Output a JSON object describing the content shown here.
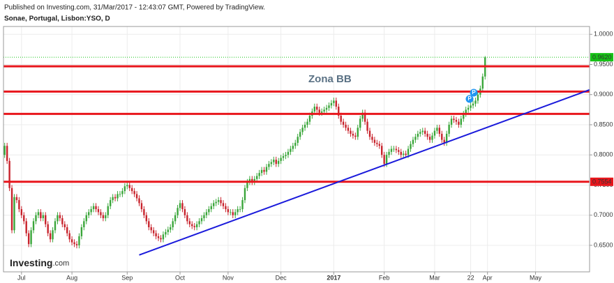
{
  "header": {
    "published": "Published on Investing.com, 31/Mar/2017 - 12:43:07 GMT, Powered by TradingView.",
    "symbol": "Sonae, Portugal, Lisbon:YSO, D"
  },
  "logo": {
    "name": "Investing",
    "suffix": ".com"
  },
  "chart_data": {
    "type": "candlestick",
    "annotation": "Zona BB",
    "event_markers": [
      "P",
      "P"
    ],
    "up_color": "#3aa63a",
    "down_color": "#c8232c",
    "hline_color": "#e8161c",
    "trend_color": "#1a1adb",
    "last_color": "#16c316",
    "grid": true,
    "xlim": [
      -0.5,
      243.5
    ],
    "ylim": [
      0.606,
      1.013
    ],
    "xticks": [
      {
        "value": 7,
        "label": "Jul"
      },
      {
        "value": 28,
        "label": "Aug"
      },
      {
        "value": 51,
        "label": "Sep"
      },
      {
        "value": 73,
        "label": "Oct"
      },
      {
        "value": 93,
        "label": "Nov"
      },
      {
        "value": 115,
        "label": "Dec"
      },
      {
        "value": 137,
        "label": "2017"
      },
      {
        "value": 158,
        "label": "Feb"
      },
      {
        "value": 179,
        "label": "Mar"
      },
      {
        "value": 194,
        "label": "22"
      },
      {
        "value": 201,
        "label": "Apr"
      },
      {
        "value": 221,
        "label": "May"
      }
    ],
    "yticks": [
      {
        "value": 0.65,
        "label": "0.6500"
      },
      {
        "value": 0.7,
        "label": "0.7000"
      },
      {
        "value": 0.75,
        "label": "0.7500"
      },
      {
        "value": 0.8,
        "label": "0.8000"
      },
      {
        "value": 0.85,
        "label": "0.8500"
      },
      {
        "value": 0.9,
        "label": "0.9000"
      },
      {
        "value": 0.95,
        "label": "0.9500"
      },
      {
        "value": 1,
        "label": "1.0000"
      }
    ],
    "hlines": [
      0.947,
      0.905,
      0.868,
      {
        "value": 0.7554,
        "label": "0.7554"
      }
    ],
    "last_price": {
      "value": 0.962,
      "label": "0.9620"
    },
    "trendline": {
      "x": [
        56,
        243.5
      ],
      "y": [
        0.634,
        0.908
      ]
    },
    "open": [
      0.8,
      0.815,
      0.79,
      0.745,
      0.675,
      0.73,
      0.725,
      0.71,
      0.7,
      0.69,
      0.67,
      0.652,
      0.675,
      0.69,
      0.7,
      0.705,
      0.695,
      0.7,
      0.685,
      0.67,
      0.66,
      0.675,
      0.69,
      0.7,
      0.695,
      0.685,
      0.68,
      0.67,
      0.66,
      0.655,
      0.652,
      0.65,
      0.665,
      0.68,
      0.69,
      0.7,
      0.705,
      0.71,
      0.715,
      0.71,
      0.705,
      0.7,
      0.695,
      0.7,
      0.715,
      0.725,
      0.73,
      0.728,
      0.735,
      0.735,
      0.74,
      0.748,
      0.75,
      0.745,
      0.74,
      0.735,
      0.728,
      0.72,
      0.71,
      0.7,
      0.69,
      0.68,
      0.675,
      0.67,
      0.665,
      0.662,
      0.66,
      0.668,
      0.672,
      0.676,
      0.68,
      0.69,
      0.7,
      0.712,
      0.72,
      0.71,
      0.7,
      0.69,
      0.685,
      0.682,
      0.68,
      0.685,
      0.69,
      0.695,
      0.7,
      0.705,
      0.71,
      0.715,
      0.72,
      0.722,
      0.725,
      0.72,
      0.715,
      0.71,
      0.705,
      0.705,
      0.7,
      0.705,
      0.71,
      0.71,
      0.725,
      0.745,
      0.755,
      0.76,
      0.755,
      0.76,
      0.765,
      0.77,
      0.775,
      0.772,
      0.78,
      0.785,
      0.788,
      0.792,
      0.785,
      0.79,
      0.795,
      0.798,
      0.8,
      0.805,
      0.81,
      0.815,
      0.82,
      0.83,
      0.838,
      0.845,
      0.85,
      0.855,
      0.865,
      0.872,
      0.88,
      0.875,
      0.87,
      0.872,
      0.875,
      0.878,
      0.882,
      0.886,
      0.89,
      0.88,
      0.865,
      0.855,
      0.85,
      0.845,
      0.84,
      0.835,
      0.832,
      0.83,
      0.845,
      0.86,
      0.87,
      0.855,
      0.84,
      0.83,
      0.825,
      0.82,
      0.818,
      0.815,
      0.8,
      0.785,
      0.8,
      0.805,
      0.81,
      0.81,
      0.808,
      0.805,
      0.8,
      0.802,
      0.8,
      0.81,
      0.818,
      0.825,
      0.83,
      0.835,
      0.838,
      0.84,
      0.835,
      0.83,
      0.825,
      0.832,
      0.84,
      0.845,
      0.835,
      0.825,
      0.82,
      0.835,
      0.85,
      0.86,
      0.858,
      0.855,
      0.85,
      0.86,
      0.868,
      0.875,
      0.878,
      0.882,
      0.885,
      0.89,
      0.9,
      0.91,
      0.93
    ],
    "high": [
      0.82,
      0.82,
      0.795,
      0.75,
      0.735,
      0.735,
      0.73,
      0.715,
      0.705,
      0.695,
      0.675,
      0.68,
      0.695,
      0.705,
      0.71,
      0.71,
      0.705,
      0.705,
      0.69,
      0.675,
      0.68,
      0.695,
      0.705,
      0.705,
      0.7,
      0.69,
      0.685,
      0.675,
      0.665,
      0.66,
      0.657,
      0.67,
      0.685,
      0.695,
      0.705,
      0.71,
      0.715,
      0.72,
      0.72,
      0.715,
      0.71,
      0.705,
      0.705,
      0.72,
      0.73,
      0.735,
      0.735,
      0.74,
      0.74,
      0.745,
      0.753,
      0.755,
      0.755,
      0.75,
      0.745,
      0.74,
      0.733,
      0.725,
      0.715,
      0.705,
      0.695,
      0.685,
      0.68,
      0.675,
      0.67,
      0.667,
      0.673,
      0.677,
      0.681,
      0.685,
      0.695,
      0.705,
      0.717,
      0.725,
      0.725,
      0.715,
      0.705,
      0.695,
      0.69,
      0.687,
      0.69,
      0.695,
      0.7,
      0.705,
      0.71,
      0.715,
      0.72,
      0.725,
      0.727,
      0.73,
      0.73,
      0.725,
      0.72,
      0.715,
      0.71,
      0.71,
      0.71,
      0.715,
      0.715,
      0.73,
      0.75,
      0.76,
      0.765,
      0.765,
      0.765,
      0.77,
      0.775,
      0.78,
      0.78,
      0.785,
      0.79,
      0.793,
      0.797,
      0.797,
      0.795,
      0.8,
      0.803,
      0.805,
      0.81,
      0.815,
      0.82,
      0.825,
      0.835,
      0.843,
      0.85,
      0.855,
      0.86,
      0.87,
      0.877,
      0.885,
      0.885,
      0.88,
      0.877,
      0.88,
      0.883,
      0.887,
      0.891,
      0.895,
      0.895,
      0.885,
      0.87,
      0.86,
      0.855,
      0.85,
      0.845,
      0.84,
      0.837,
      0.85,
      0.865,
      0.875,
      0.875,
      0.86,
      0.845,
      0.835,
      0.83,
      0.825,
      0.823,
      0.82,
      0.805,
      0.805,
      0.81,
      0.815,
      0.815,
      0.815,
      0.813,
      0.81,
      0.807,
      0.807,
      0.815,
      0.823,
      0.83,
      0.835,
      0.84,
      0.843,
      0.845,
      0.845,
      0.84,
      0.835,
      0.837,
      0.845,
      0.85,
      0.85,
      0.84,
      0.83,
      0.84,
      0.855,
      0.865,
      0.865,
      0.863,
      0.86,
      0.865,
      0.873,
      0.88,
      0.883,
      0.887,
      0.89,
      0.895,
      0.905,
      0.915,
      0.935,
      0.964
    ],
    "low": [
      0.795,
      0.785,
      0.74,
      0.67,
      0.67,
      0.72,
      0.705,
      0.695,
      0.685,
      0.665,
      0.647,
      0.647,
      0.67,
      0.685,
      0.695,
      0.69,
      0.69,
      0.68,
      0.665,
      0.655,
      0.655,
      0.67,
      0.685,
      0.69,
      0.68,
      0.675,
      0.665,
      0.655,
      0.65,
      0.647,
      0.645,
      0.645,
      0.66,
      0.675,
      0.685,
      0.695,
      0.7,
      0.705,
      0.705,
      0.7,
      0.695,
      0.69,
      0.69,
      0.695,
      0.71,
      0.72,
      0.723,
      0.723,
      0.73,
      0.73,
      0.735,
      0.743,
      0.74,
      0.735,
      0.73,
      0.723,
      0.715,
      0.705,
      0.695,
      0.685,
      0.675,
      0.67,
      0.665,
      0.66,
      0.657,
      0.655,
      0.655,
      0.663,
      0.667,
      0.671,
      0.675,
      0.685,
      0.695,
      0.707,
      0.705,
      0.695,
      0.685,
      0.68,
      0.677,
      0.675,
      0.675,
      0.68,
      0.685,
      0.69,
      0.695,
      0.7,
      0.705,
      0.71,
      0.715,
      0.717,
      0.715,
      0.71,
      0.705,
      0.7,
      0.7,
      0.695,
      0.695,
      0.7,
      0.705,
      0.705,
      0.72,
      0.74,
      0.75,
      0.75,
      0.75,
      0.755,
      0.76,
      0.765,
      0.767,
      0.767,
      0.775,
      0.78,
      0.783,
      0.78,
      0.78,
      0.785,
      0.79,
      0.793,
      0.795,
      0.8,
      0.805,
      0.81,
      0.815,
      0.825,
      0.833,
      0.84,
      0.845,
      0.85,
      0.86,
      0.867,
      0.87,
      0.865,
      0.865,
      0.867,
      0.87,
      0.873,
      0.877,
      0.881,
      0.875,
      0.86,
      0.85,
      0.845,
      0.84,
      0.835,
      0.83,
      0.827,
      0.825,
      0.825,
      0.84,
      0.855,
      0.85,
      0.835,
      0.825,
      0.82,
      0.815,
      0.813,
      0.81,
      0.795,
      0.78,
      0.78,
      0.795,
      0.8,
      0.805,
      0.803,
      0.8,
      0.795,
      0.795,
      0.795,
      0.795,
      0.805,
      0.813,
      0.82,
      0.825,
      0.83,
      0.833,
      0.83,
      0.825,
      0.82,
      0.82,
      0.827,
      0.835,
      0.83,
      0.82,
      0.815,
      0.815,
      0.83,
      0.845,
      0.853,
      0.85,
      0.845,
      0.845,
      0.855,
      0.863,
      0.87,
      0.873,
      0.877,
      0.88,
      0.885,
      0.895,
      0.905,
      0.925
    ],
    "close": [
      0.815,
      0.79,
      0.745,
      0.675,
      0.73,
      0.725,
      0.71,
      0.7,
      0.69,
      0.67,
      0.652,
      0.675,
      0.69,
      0.7,
      0.705,
      0.695,
      0.7,
      0.685,
      0.67,
      0.66,
      0.675,
      0.69,
      0.7,
      0.695,
      0.685,
      0.68,
      0.67,
      0.66,
      0.655,
      0.652,
      0.65,
      0.665,
      0.68,
      0.69,
      0.7,
      0.705,
      0.71,
      0.715,
      0.71,
      0.705,
      0.7,
      0.695,
      0.7,
      0.715,
      0.725,
      0.73,
      0.728,
      0.735,
      0.735,
      0.74,
      0.748,
      0.75,
      0.745,
      0.74,
      0.735,
      0.728,
      0.72,
      0.71,
      0.7,
      0.69,
      0.68,
      0.675,
      0.67,
      0.665,
      0.662,
      0.66,
      0.668,
      0.672,
      0.676,
      0.68,
      0.69,
      0.7,
      0.712,
      0.72,
      0.71,
      0.7,
      0.69,
      0.685,
      0.682,
      0.68,
      0.685,
      0.69,
      0.695,
      0.7,
      0.705,
      0.71,
      0.715,
      0.72,
      0.722,
      0.725,
      0.72,
      0.715,
      0.71,
      0.705,
      0.705,
      0.7,
      0.705,
      0.71,
      0.71,
      0.725,
      0.745,
      0.755,
      0.76,
      0.755,
      0.76,
      0.765,
      0.77,
      0.775,
      0.772,
      0.78,
      0.785,
      0.788,
      0.792,
      0.785,
      0.79,
      0.795,
      0.798,
      0.8,
      0.805,
      0.81,
      0.815,
      0.82,
      0.83,
      0.838,
      0.845,
      0.85,
      0.855,
      0.865,
      0.872,
      0.88,
      0.875,
      0.87,
      0.872,
      0.875,
      0.878,
      0.882,
      0.886,
      0.89,
      0.88,
      0.865,
      0.855,
      0.85,
      0.845,
      0.84,
      0.835,
      0.832,
      0.83,
      0.845,
      0.86,
      0.87,
      0.855,
      0.84,
      0.83,
      0.825,
      0.82,
      0.818,
      0.815,
      0.8,
      0.785,
      0.8,
      0.805,
      0.81,
      0.81,
      0.808,
      0.805,
      0.8,
      0.802,
      0.8,
      0.81,
      0.818,
      0.825,
      0.83,
      0.835,
      0.838,
      0.84,
      0.835,
      0.83,
      0.825,
      0.832,
      0.84,
      0.845,
      0.835,
      0.825,
      0.82,
      0.835,
      0.85,
      0.86,
      0.858,
      0.855,
      0.85,
      0.86,
      0.868,
      0.875,
      0.878,
      0.882,
      0.885,
      0.89,
      0.9,
      0.91,
      0.93,
      0.962
    ]
  }
}
